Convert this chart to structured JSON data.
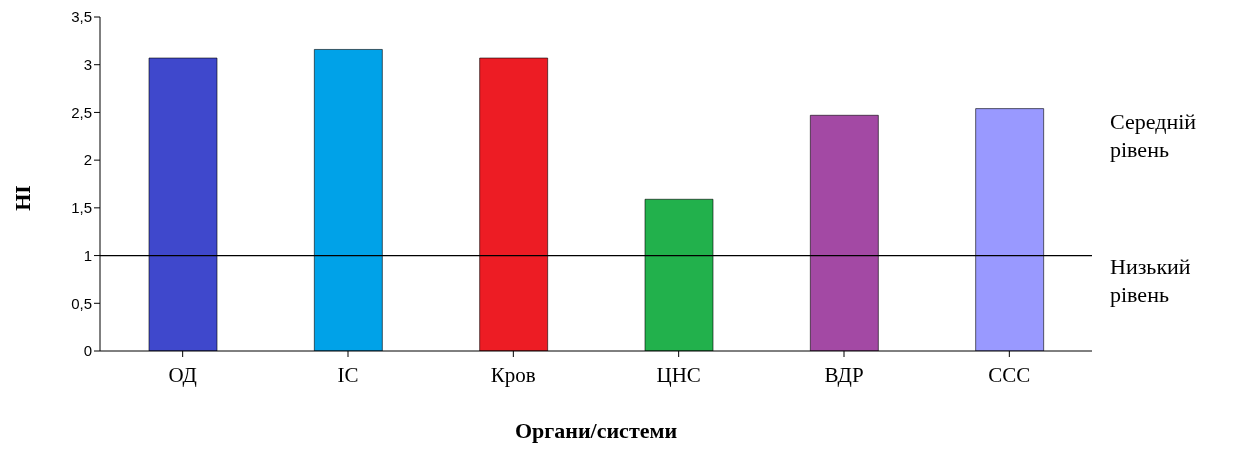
{
  "chart_data": {
    "type": "bar",
    "xlabel": "Органи/системи",
    "ylabel": "НІ",
    "categories": [
      "ОД",
      "ІС",
      "Кров",
      "ЦНС",
      "ВДР",
      "ССС"
    ],
    "values": [
      3.07,
      3.16,
      3.07,
      1.59,
      2.47,
      2.54
    ],
    "colors": [
      "#3f48cc",
      "#00a2e8",
      "#ed1c24",
      "#22b14c",
      "#a349a4",
      "#9999ff"
    ],
    "ylim": [
      0,
      3.5
    ],
    "yticks": [
      0,
      {
        "value": 0.5,
        "label": "0,5"
      },
      1,
      {
        "value": 1.5,
        "label": "1,5"
      },
      2,
      {
        "value": 2.5,
        "label": "2,5"
      },
      3,
      {
        "value": 3.5,
        "label": "3,5"
      }
    ],
    "grid": false,
    "ref_lines": [
      {
        "axis": "y",
        "value": 1,
        "label": null,
        "color": "#000000"
      }
    ],
    "annotations": [
      "Середній рівень",
      "Низький рівень"
    ]
  }
}
